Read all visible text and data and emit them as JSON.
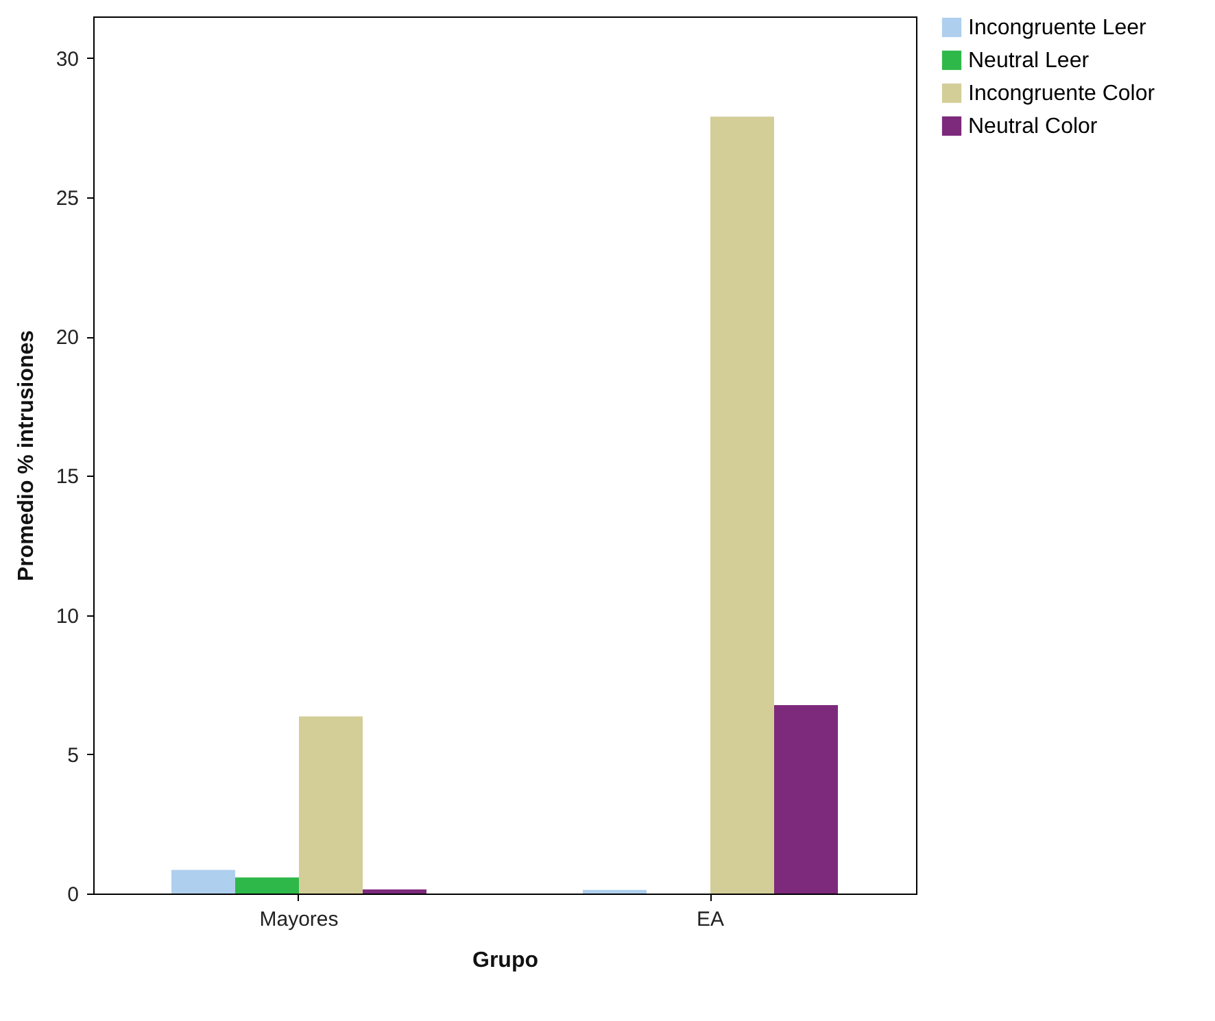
{
  "chart_data": {
    "type": "bar",
    "xlabel": "Grupo",
    "ylabel": "Promedio % intrusiones",
    "categories": [
      "Mayores",
      "EA"
    ],
    "series": [
      {
        "name": "Incongruente Leer",
        "color": "#aecfee",
        "values": [
          0.85,
          0.13
        ]
      },
      {
        "name": "Neutral Leer",
        "color": "#2fb84a",
        "values": [
          0.58,
          0
        ]
      },
      {
        "name": "Incongruente Color",
        "color": "#d3ce97",
        "values": [
          6.36,
          27.9
        ]
      },
      {
        "name": "Neutral Color",
        "color": "#7d2a7c",
        "values": [
          0.15,
          6.77
        ]
      }
    ],
    "ylim": [
      0,
      31.5
    ],
    "yticks": [
      0,
      5,
      10,
      15,
      20,
      25,
      30
    ],
    "legend": "top right"
  }
}
